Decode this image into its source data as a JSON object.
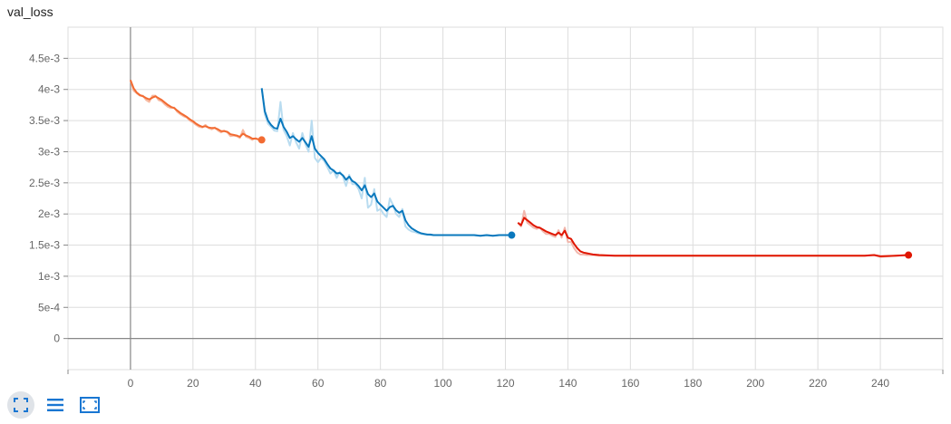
{
  "title": "val_loss",
  "toolbar": {
    "items": [
      {
        "icon": "fullscreen-icon",
        "active": true
      },
      {
        "icon": "list-icon",
        "active": false
      },
      {
        "icon": "fit-domain-icon",
        "active": false
      }
    ]
  },
  "colors": {
    "run1": "#f26b32",
    "run1_raw": "#f7b9a0",
    "run2": "#0a78bd",
    "run2_raw": "#b9dcf0",
    "run3": "#e01600",
    "run3_raw": "#f2b7ad",
    "grid": "#dddddd",
    "axis": "#888888",
    "tick_text": "#666666"
  },
  "chart_data": {
    "type": "line",
    "xlim": [
      -20,
      260
    ],
    "ylim": [
      -0.0005,
      0.005
    ],
    "grid": true,
    "x_ticks": [
      0,
      20,
      40,
      60,
      80,
      100,
      120,
      140,
      160,
      180,
      200,
      220,
      240
    ],
    "x_tick_labels": [
      "0",
      "20",
      "40",
      "60",
      "80",
      "100",
      "120",
      "140",
      "160",
      "180",
      "200",
      "220",
      "240"
    ],
    "y_ticks": [
      0,
      0.0005,
      0.001,
      0.0015,
      0.002,
      0.0025,
      0.003,
      0.0035,
      0.004,
      0.0045
    ],
    "y_tick_labels": [
      "0",
      "5e-4",
      "1e-3",
      "1.5e-3",
      "2e-3",
      "2.5e-3",
      "3e-3",
      "3.5e-3",
      "4e-3",
      "4.5e-3"
    ],
    "series": [
      {
        "x": [
          0,
          1,
          2,
          3,
          4,
          5,
          6,
          7,
          8,
          9,
          10,
          11,
          12,
          13,
          14,
          15,
          16,
          17,
          18,
          19,
          20,
          21,
          22,
          23,
          24,
          25,
          26,
          27,
          28,
          29,
          30,
          31,
          32,
          33,
          34,
          35,
          36,
          37,
          38,
          39,
          40,
          41,
          42
        ],
        "y": [
          0.00415,
          0.00402,
          0.00395,
          0.00391,
          0.00389,
          0.00386,
          0.00384,
          0.00387,
          0.00389,
          0.00386,
          0.00383,
          0.00379,
          0.00375,
          0.00372,
          0.0037,
          0.00366,
          0.00362,
          0.00359,
          0.00356,
          0.00352,
          0.00349,
          0.00345,
          0.00342,
          0.0034,
          0.00341,
          0.00339,
          0.00338,
          0.00338,
          0.00336,
          0.00333,
          0.00333,
          0.00332,
          0.00328,
          0.00327,
          0.00326,
          0.00324,
          0.00329,
          0.00326,
          0.00324,
          0.00321,
          0.00321,
          0.0032,
          0.00319
        ],
        "raw": [
          0.00415,
          0.00398,
          0.00394,
          0.0039,
          0.0039,
          0.00383,
          0.0038,
          0.0039,
          0.0039,
          0.00383,
          0.00381,
          0.00376,
          0.00372,
          0.0037,
          0.00371,
          0.00364,
          0.0036,
          0.00357,
          0.00355,
          0.0035,
          0.00347,
          0.00343,
          0.0034,
          0.00339,
          0.00343,
          0.00338,
          0.00336,
          0.00339,
          0.00334,
          0.00331,
          0.00334,
          0.00331,
          0.00325,
          0.00326,
          0.00325,
          0.00322,
          0.00335,
          0.00324,
          0.00322,
          0.00319,
          0.00322,
          0.00319,
          0.00318
        ],
        "color_key": "run1"
      },
      {
        "x": [
          42,
          43,
          44,
          45,
          46,
          47,
          48,
          49,
          50,
          51,
          52,
          53,
          54,
          55,
          56,
          57,
          58,
          59,
          60,
          61,
          62,
          63,
          64,
          65,
          66,
          67,
          68,
          69,
          70,
          71,
          72,
          73,
          74,
          75,
          76,
          77,
          78,
          79,
          80,
          81,
          82,
          83,
          84,
          85,
          86,
          87,
          88,
          89,
          90,
          91,
          92,
          93,
          94,
          95,
          96,
          97,
          98,
          99,
          100,
          102,
          104,
          106,
          108,
          110,
          112,
          114,
          116,
          118,
          120,
          122
        ],
        "y": [
          0.00402,
          0.00365,
          0.0035,
          0.00343,
          0.00338,
          0.00337,
          0.00353,
          0.0034,
          0.00332,
          0.00322,
          0.00325,
          0.0032,
          0.00316,
          0.00322,
          0.00315,
          0.00308,
          0.00325,
          0.00305,
          0.00298,
          0.00293,
          0.00288,
          0.0028,
          0.00273,
          0.0027,
          0.00265,
          0.00266,
          0.00262,
          0.00255,
          0.0026,
          0.00253,
          0.0025,
          0.00245,
          0.00238,
          0.00246,
          0.00232,
          0.00227,
          0.00233,
          0.0022,
          0.00215,
          0.0021,
          0.00205,
          0.00211,
          0.00213,
          0.00206,
          0.00202,
          0.00205,
          0.0019,
          0.00182,
          0.00177,
          0.00174,
          0.00171,
          0.00169,
          0.00168,
          0.00167,
          0.00167,
          0.00166,
          0.00166,
          0.00166,
          0.00166,
          0.00166,
          0.00166,
          0.00166,
          0.00166,
          0.00166,
          0.00165,
          0.00166,
          0.00165,
          0.00166,
          0.00166,
          0.00166
        ],
        "raw": [
          0.00402,
          0.0036,
          0.00345,
          0.0034,
          0.00334,
          0.00333,
          0.0038,
          0.00335,
          0.00325,
          0.0031,
          0.0033,
          0.00315,
          0.00305,
          0.0033,
          0.00312,
          0.003,
          0.0035,
          0.0029,
          0.00283,
          0.0029,
          0.00285,
          0.00275,
          0.00265,
          0.0027,
          0.00258,
          0.00268,
          0.0026,
          0.00245,
          0.00263,
          0.00248,
          0.00248,
          0.0024,
          0.00225,
          0.00258,
          0.0021,
          0.00215,
          0.0024,
          0.00205,
          0.00208,
          0.002,
          0.00195,
          0.00225,
          0.00215,
          0.002,
          0.00195,
          0.00208,
          0.0018,
          0.00175,
          0.00172,
          0.00171,
          0.00169,
          0.00168,
          0.00167,
          0.00167,
          0.00166,
          0.00166,
          0.00166,
          0.00166,
          0.00166,
          0.00166,
          0.00166,
          0.00166,
          0.00166,
          0.00166,
          0.00165,
          0.00166,
          0.00165,
          0.00166,
          0.00166,
          0.00166
        ],
        "color_key": "run2"
      },
      {
        "x": [
          124,
          125,
          126,
          127,
          128,
          129,
          130,
          131,
          132,
          133,
          134,
          135,
          136,
          137,
          138,
          139,
          140,
          141,
          142,
          143,
          144,
          145,
          146,
          147,
          148,
          150,
          155,
          160,
          170,
          180,
          190,
          200,
          210,
          220,
          230,
          235,
          238,
          240,
          245,
          249
        ],
        "y": [
          0.00186,
          0.00182,
          0.00194,
          0.0019,
          0.00186,
          0.00182,
          0.00179,
          0.00178,
          0.00175,
          0.00172,
          0.0017,
          0.00168,
          0.00166,
          0.0017,
          0.00166,
          0.00173,
          0.00162,
          0.0016,
          0.00152,
          0.00145,
          0.0014,
          0.00138,
          0.00137,
          0.00136,
          0.00135,
          0.00134,
          0.00133,
          0.00133,
          0.00133,
          0.00133,
          0.00133,
          0.00133,
          0.00133,
          0.00133,
          0.00133,
          0.00133,
          0.00134,
          0.00132,
          0.00133,
          0.00134
        ],
        "raw": [
          0.00186,
          0.0018,
          0.00205,
          0.00186,
          0.00182,
          0.00178,
          0.00176,
          0.00178,
          0.00172,
          0.00168,
          0.00168,
          0.00165,
          0.00163,
          0.00174,
          0.00162,
          0.00178,
          0.00155,
          0.00155,
          0.00145,
          0.00138,
          0.00135,
          0.00135,
          0.00134,
          0.00134,
          0.00134,
          0.00133,
          0.00133,
          0.00133,
          0.00133,
          0.00133,
          0.00133,
          0.00133,
          0.00133,
          0.00133,
          0.00133,
          0.00133,
          0.00134,
          0.00131,
          0.00133,
          0.00134
        ],
        "color_key": "run3"
      }
    ]
  }
}
